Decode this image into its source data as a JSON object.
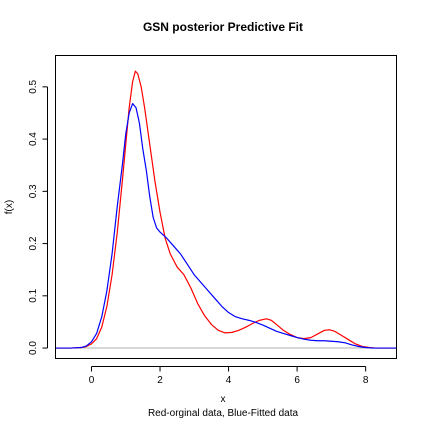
{
  "chart_data": {
    "type": "line",
    "title": "GSN posterior Predictive Fit",
    "xlabel": "x",
    "xlabel_sub": "Red-orginal data, Blue-Fitted data",
    "ylabel": "f(x)",
    "xlim": [
      -1.05,
      8.9
    ],
    "ylim": [
      -0.02,
      0.56
    ],
    "x_ticks": [
      0,
      2,
      4,
      6,
      8
    ],
    "x_tick_labels": [
      "0",
      "2",
      "4",
      "6",
      "8"
    ],
    "y_ticks": [
      0.0,
      0.1,
      0.2,
      0.3,
      0.4,
      0.5
    ],
    "y_tick_labels": [
      "0.0",
      "0.1",
      "0.2",
      "0.3",
      "0.4",
      "0.5"
    ],
    "grid": false,
    "colors": {
      "original": "#ff0000",
      "fitted": "#0000ff",
      "baseline": "#b0b0b0"
    },
    "series": [
      {
        "color": "#ff0000",
        "points": [
          [
            -1.05,
            0.0
          ],
          [
            -0.6,
            0.0
          ],
          [
            -0.3,
            0.001
          ],
          [
            -0.15,
            0.003
          ],
          [
            0.0,
            0.008
          ],
          [
            0.15,
            0.018
          ],
          [
            0.3,
            0.04
          ],
          [
            0.45,
            0.08
          ],
          [
            0.6,
            0.14
          ],
          [
            0.75,
            0.22
          ],
          [
            0.9,
            0.32
          ],
          [
            1.0,
            0.39
          ],
          [
            1.1,
            0.46
          ],
          [
            1.2,
            0.51
          ],
          [
            1.28,
            0.53
          ],
          [
            1.35,
            0.525
          ],
          [
            1.45,
            0.5
          ],
          [
            1.55,
            0.46
          ],
          [
            1.7,
            0.39
          ],
          [
            1.85,
            0.32
          ],
          [
            2.0,
            0.26
          ],
          [
            2.15,
            0.21
          ],
          [
            2.3,
            0.18
          ],
          [
            2.5,
            0.155
          ],
          [
            2.7,
            0.14
          ],
          [
            2.9,
            0.115
          ],
          [
            3.1,
            0.085
          ],
          [
            3.3,
            0.062
          ],
          [
            3.5,
            0.045
          ],
          [
            3.7,
            0.034
          ],
          [
            3.9,
            0.029
          ],
          [
            4.1,
            0.03
          ],
          [
            4.3,
            0.034
          ],
          [
            4.5,
            0.04
          ],
          [
            4.7,
            0.047
          ],
          [
            4.9,
            0.053
          ],
          [
            5.1,
            0.056
          ],
          [
            5.25,
            0.053
          ],
          [
            5.4,
            0.045
          ],
          [
            5.6,
            0.034
          ],
          [
            5.8,
            0.026
          ],
          [
            6.0,
            0.02
          ],
          [
            6.2,
            0.018
          ],
          [
            6.4,
            0.02
          ],
          [
            6.6,
            0.027
          ],
          [
            6.8,
            0.034
          ],
          [
            6.95,
            0.035
          ],
          [
            7.1,
            0.032
          ],
          [
            7.3,
            0.024
          ],
          [
            7.5,
            0.016
          ],
          [
            7.7,
            0.008
          ],
          [
            7.9,
            0.003
          ],
          [
            8.1,
            0.001
          ],
          [
            8.3,
            0.0
          ],
          [
            8.9,
            0.0
          ]
        ]
      },
      {
        "color": "#0000ff",
        "points": [
          [
            -1.05,
            0.0
          ],
          [
            -0.6,
            0.0
          ],
          [
            -0.3,
            0.001
          ],
          [
            -0.15,
            0.004
          ],
          [
            0.0,
            0.012
          ],
          [
            0.15,
            0.028
          ],
          [
            0.3,
            0.06
          ],
          [
            0.45,
            0.11
          ],
          [
            0.6,
            0.18
          ],
          [
            0.75,
            0.27
          ],
          [
            0.9,
            0.35
          ],
          [
            1.0,
            0.41
          ],
          [
            1.1,
            0.45
          ],
          [
            1.2,
            0.468
          ],
          [
            1.3,
            0.46
          ],
          [
            1.4,
            0.43
          ],
          [
            1.5,
            0.38
          ],
          [
            1.6,
            0.34
          ],
          [
            1.7,
            0.29
          ],
          [
            1.8,
            0.25
          ],
          [
            1.9,
            0.23
          ],
          [
            2.0,
            0.222
          ],
          [
            2.2,
            0.21
          ],
          [
            2.4,
            0.195
          ],
          [
            2.6,
            0.18
          ],
          [
            2.8,
            0.16
          ],
          [
            3.0,
            0.14
          ],
          [
            3.2,
            0.125
          ],
          [
            3.4,
            0.11
          ],
          [
            3.6,
            0.095
          ],
          [
            3.8,
            0.08
          ],
          [
            4.0,
            0.068
          ],
          [
            4.2,
            0.06
          ],
          [
            4.4,
            0.056
          ],
          [
            4.6,
            0.053
          ],
          [
            4.8,
            0.049
          ],
          [
            5.0,
            0.044
          ],
          [
            5.2,
            0.038
          ],
          [
            5.4,
            0.032
          ],
          [
            5.6,
            0.028
          ],
          [
            5.8,
            0.024
          ],
          [
            6.0,
            0.02
          ],
          [
            6.2,
            0.017
          ],
          [
            6.4,
            0.015
          ],
          [
            6.6,
            0.014
          ],
          [
            6.8,
            0.014
          ],
          [
            7.0,
            0.013
          ],
          [
            7.2,
            0.012
          ],
          [
            7.4,
            0.01
          ],
          [
            7.6,
            0.006
          ],
          [
            7.8,
            0.003
          ],
          [
            8.0,
            0.001
          ],
          [
            8.2,
            0.0
          ],
          [
            8.9,
            0.0
          ]
        ]
      }
    ]
  }
}
